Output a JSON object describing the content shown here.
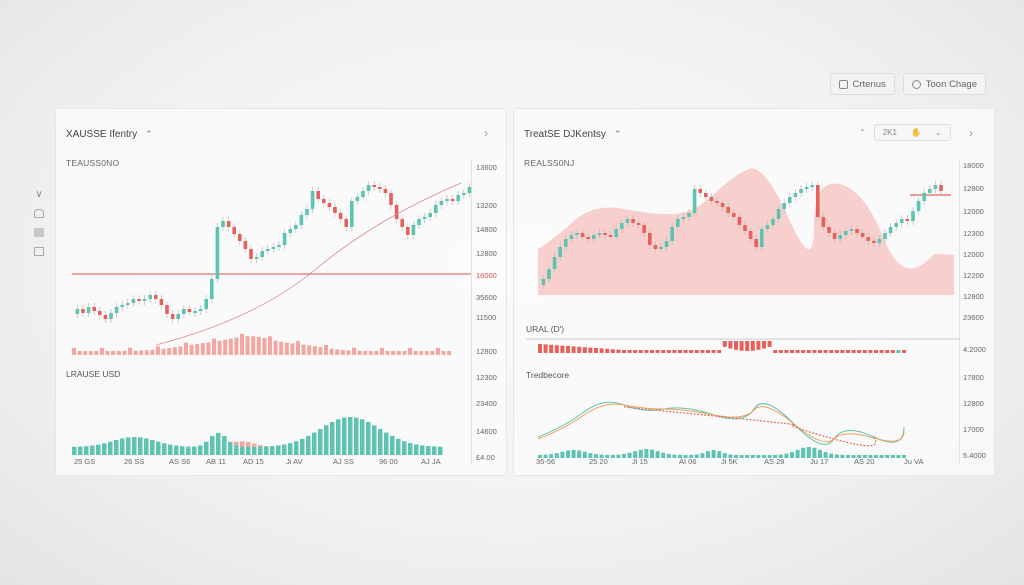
{
  "toolbar": {
    "buttons": [
      {
        "label": "Crtenus",
        "icon": "calendar-icon"
      },
      {
        "label": "Toon Chage",
        "icon": "clock-icon"
      }
    ]
  },
  "left_rail": {
    "icons": [
      "chevron-down-icon",
      "home-icon",
      "grid-icon",
      "list-icon"
    ]
  },
  "panels": [
    {
      "title": "XAUSSE Ifentry",
      "subtitle": "TEAUSS0NO",
      "indicator_label": "LRAUSE USD",
      "price_axis": [
        "13600",
        "13200",
        "14800",
        "12800",
        "16000",
        "35600",
        "11500",
        "12800",
        "12300",
        "23400",
        "14600",
        "£4.00"
      ],
      "highlight_price": "16000",
      "x_labels": [
        "25 GS",
        "26 SS",
        "AS S6",
        "AB 11",
        "AD 15",
        "Ji AV",
        "AJ SS",
        "96 00",
        "AJ JA"
      ],
      "colors": {
        "up": "#5cc4b0",
        "down": "#e8605c",
        "volume": "#f2a8a0",
        "level_line": "#d9534f"
      }
    },
    {
      "title": "TreatSE DJKentsy",
      "subtitle": "REALSS0NJ",
      "indicator_label": "URAL (D')",
      "second_indicator_label": "Tredbecore",
      "controls": {
        "value": "2K1",
        "icon": "hand-icon"
      },
      "price_axis": [
        "18000",
        "12800",
        "12000",
        "12300",
        "12000",
        "12200",
        "12800",
        "23600",
        "4.2000",
        "17800",
        "12800",
        "17000",
        "5.4000"
      ],
      "x_labels": [
        "35-56",
        "25 20",
        "Ji 15",
        "AI 06",
        "Ji 5K",
        "AS 29",
        "Ju 17",
        "AS 20",
        "Ju VA"
      ],
      "colors": {
        "area": "#f7cfcc",
        "up": "#5cc4b0",
        "down": "#e8605c",
        "line1": "#5cc4b0",
        "line2": "#f0a05a",
        "dotted": "#e0705a"
      }
    }
  ]
}
